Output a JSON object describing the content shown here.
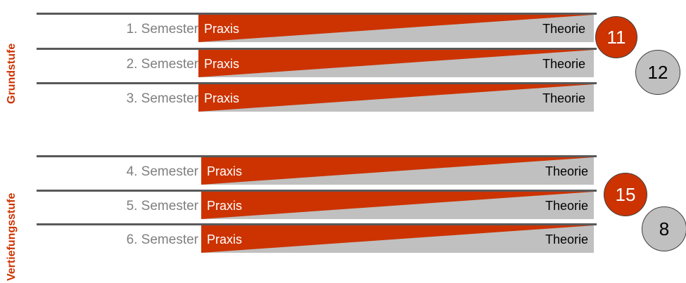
{
  "colors": {
    "praxis": "#cc3300",
    "theorie": "#c0c0c0",
    "stage_label": "#cc3300",
    "semester_label": "#7f7f7f",
    "row_line": "#595959"
  },
  "stages": [
    {
      "label": "Grundstufe",
      "semesters": [
        {
          "label": "1. Semester",
          "praxis": "Praxis",
          "theorie": "Theorie"
        },
        {
          "label": "2. Semester",
          "praxis": "Praxis",
          "theorie": "Theorie"
        },
        {
          "label": "3. Semester",
          "praxis": "Praxis",
          "theorie": "Theorie"
        }
      ],
      "praxis_count": "11",
      "theorie_count": "12"
    },
    {
      "label": "Vertiefungsstufe",
      "semesters": [
        {
          "label": "4. Semester",
          "praxis": "Praxis",
          "theorie": "Theorie"
        },
        {
          "label": "5. Semester",
          "praxis": "Praxis",
          "theorie": "Theorie"
        },
        {
          "label": "6. Semester",
          "praxis": "Praxis",
          "theorie": "Theorie"
        }
      ],
      "praxis_count": "15",
      "theorie_count": "8"
    }
  ]
}
